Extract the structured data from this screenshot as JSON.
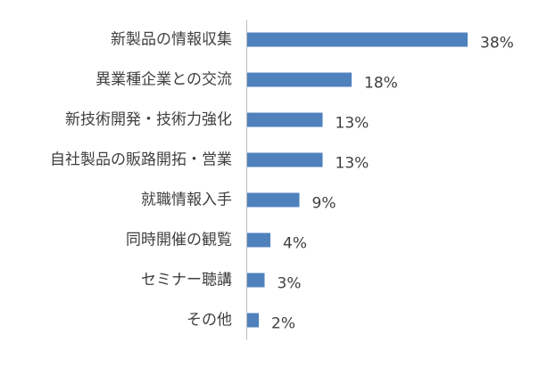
{
  "chart_data": {
    "type": "bar",
    "orientation": "horizontal",
    "categories": [
      "新製品の情報収集",
      "異業種企業との交流",
      "新技術開発・技術力強化",
      "自社製品の販路開拓・営業",
      "就職情報入手",
      "同時開催の観覧",
      "セミナー聴講",
      "その他"
    ],
    "values": [
      38,
      18,
      13,
      13,
      9,
      4,
      3,
      2
    ],
    "value_labels": [
      "38%",
      "18%",
      "13%",
      "13%",
      "9%",
      "4%",
      "3%",
      "2%"
    ],
    "color": "#4f81bd"
  }
}
